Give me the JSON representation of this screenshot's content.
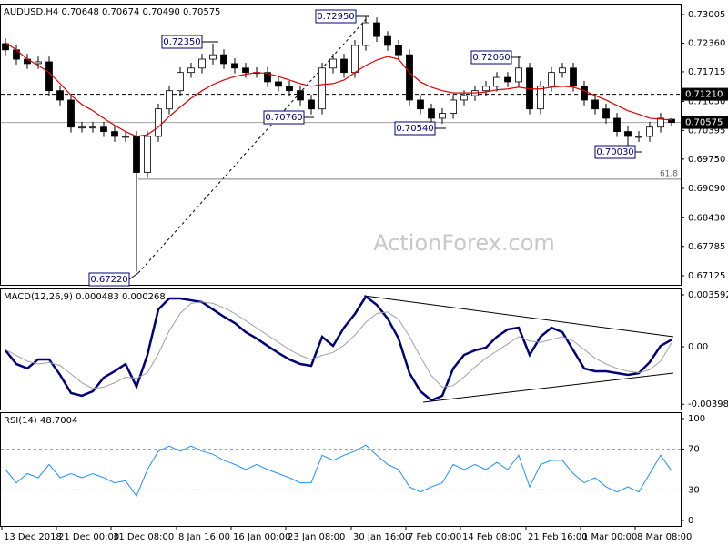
{
  "chart_data": [
    {
      "type": "candlestick",
      "title": "AUDUSD,H4  0.70648 0.70674 0.70490 0.70575",
      "open": [
        0.7235,
        0.7221,
        0.72,
        0.719,
        0.7194,
        0.7129,
        0.7108,
        0.7047,
        0.7047,
        0.7047,
        0.7037,
        0.7026,
        0.7026,
        0.6945,
        0.7026,
        0.7088,
        0.7129,
        0.717,
        0.718,
        0.72,
        0.721,
        0.719,
        0.718,
        0.717,
        0.717,
        0.7149,
        0.7139,
        0.7129,
        0.7108,
        0.7088,
        0.718,
        0.72,
        0.717,
        0.7231,
        0.7282,
        0.7251,
        0.7231,
        0.721,
        0.7108,
        0.7088,
        0.7067,
        0.7078,
        0.7108,
        0.7118,
        0.7129,
        0.7139,
        0.7159,
        0.7149,
        0.718,
        0.7088,
        0.7139,
        0.717,
        0.718,
        0.7139,
        0.7108,
        0.7088,
        0.7067,
        0.7037,
        0.7026,
        0.7026,
        0.7047,
        0.70648
      ],
      "high": [
        0.7247,
        0.7233,
        0.7212,
        0.7206,
        0.7206,
        0.7141,
        0.712,
        0.7059,
        0.7059,
        0.7059,
        0.7049,
        0.7038,
        0.7038,
        0.7038,
        0.71,
        0.7141,
        0.7182,
        0.7192,
        0.7212,
        0.7235,
        0.7222,
        0.7202,
        0.7192,
        0.7182,
        0.7182,
        0.7161,
        0.7151,
        0.7141,
        0.712,
        0.7192,
        0.7212,
        0.7212,
        0.7243,
        0.7295,
        0.7294,
        0.7263,
        0.7243,
        0.7222,
        0.712,
        0.71,
        0.709,
        0.712,
        0.713,
        0.7141,
        0.7151,
        0.7171,
        0.7171,
        0.7206,
        0.7192,
        0.7151,
        0.7182,
        0.7192,
        0.7192,
        0.7151,
        0.712,
        0.71,
        0.7079,
        0.7049,
        0.7038,
        0.7059,
        0.7079,
        0.70674
      ],
      "low": [
        0.7209,
        0.7188,
        0.7178,
        0.7178,
        0.7117,
        0.7096,
        0.7035,
        0.7035,
        0.7035,
        0.7025,
        0.7014,
        0.7014,
        0.6722,
        0.6933,
        0.7014,
        0.7076,
        0.7117,
        0.7158,
        0.7168,
        0.7188,
        0.7178,
        0.7168,
        0.7158,
        0.7158,
        0.7137,
        0.7127,
        0.7117,
        0.7096,
        0.7076,
        0.7076,
        0.7168,
        0.7158,
        0.7158,
        0.7219,
        0.7239,
        0.7219,
        0.7198,
        0.7096,
        0.7076,
        0.7054,
        0.7055,
        0.7066,
        0.7096,
        0.7106,
        0.7117,
        0.7127,
        0.7137,
        0.7137,
        0.7076,
        0.7076,
        0.7127,
        0.7158,
        0.7127,
        0.7096,
        0.7076,
        0.7055,
        0.7025,
        0.7003,
        0.7014,
        0.7014,
        0.7035,
        0.7049
      ],
      "close": [
        0.7221,
        0.72,
        0.719,
        0.7194,
        0.7129,
        0.7108,
        0.7047,
        0.7047,
        0.7047,
        0.7037,
        0.7026,
        0.7026,
        0.6945,
        0.7026,
        0.7088,
        0.7129,
        0.717,
        0.718,
        0.72,
        0.721,
        0.719,
        0.718,
        0.717,
        0.717,
        0.7149,
        0.7139,
        0.7129,
        0.7108,
        0.7088,
        0.718,
        0.72,
        0.717,
        0.7231,
        0.7282,
        0.7251,
        0.7231,
        0.721,
        0.7108,
        0.7088,
        0.7067,
        0.7078,
        0.7108,
        0.7118,
        0.7129,
        0.7139,
        0.7159,
        0.7149,
        0.718,
        0.7088,
        0.7139,
        0.717,
        0.718,
        0.7139,
        0.7108,
        0.7088,
        0.7067,
        0.7037,
        0.7026,
        0.7026,
        0.7047,
        0.7067,
        0.70575
      ],
      "up_color": "#ffffff",
      "down_color": "#000000",
      "ma": {
        "color": "#e00000",
        "values": [
          0.7237,
          0.7221,
          0.72,
          0.7186,
          0.717,
          0.7145,
          0.7119,
          0.7098,
          0.7084,
          0.7067,
          0.7051,
          0.7037,
          0.7026,
          0.703,
          0.7047,
          0.7071,
          0.7092,
          0.7112,
          0.7129,
          0.7143,
          0.7153,
          0.7161,
          0.7166,
          0.717,
          0.7168,
          0.7161,
          0.7153,
          0.7145,
          0.7139,
          0.7143,
          0.7145,
          0.7153,
          0.717,
          0.7186,
          0.7198,
          0.7206,
          0.72,
          0.717,
          0.7149,
          0.7137,
          0.7129,
          0.7124,
          0.7124,
          0.7124,
          0.7126,
          0.7131,
          0.7133,
          0.7137,
          0.7133,
          0.7133,
          0.7137,
          0.7139,
          0.7137,
          0.7129,
          0.7118,
          0.7108,
          0.7096,
          0.7084,
          0.7076,
          0.7067,
          0.7065,
          0.7063
        ]
      },
      "ylim": [
        0.6692,
        0.7323
      ],
      "yticks": [
        0.73005,
        {
          "value": 0.7236,
          "label": "0.72360"
        },
        0.71715,
        {
          "value": 0.7105,
          "label": "0.71050"
        },
        0.70395,
        {
          "value": 0.6975,
          "label": "0.69750"
        },
        {
          "value": 0.6909,
          "label": "0.69090"
        },
        {
          "value": 0.6843,
          "label": "0.68430"
        },
        0.67785,
        0.67125
      ],
      "hlines": [
        {
          "value": 0.7121,
          "label": "0.71210",
          "style": "dashed",
          "color": "#000000"
        },
        {
          "value": 0.70575,
          "label": "0.70575",
          "style": "solid",
          "color": "#a0a0a0"
        },
        {
          "value": 0.693,
          "name": "61.8",
          "style": "solid",
          "color": "#808080"
        }
      ],
      "annotations": [
        "0.72350",
        "0.72950",
        "0.70760",
        "0.70540",
        "0.72060",
        "0.70030",
        "0.67220"
      ],
      "watermark": "ActionForex.com"
    },
    {
      "type": "line",
      "title": "MACD(12,26,9) 0.000483 0.000268",
      "series": [
        {
          "color": "#00007a",
          "width": 2.5,
          "values": [
            -0.00025,
            -0.0012,
            -0.0015,
            -0.00088,
            -0.00088,
            -0.00195,
            -0.00321,
            -0.0034,
            -0.00309,
            -0.00214,
            -0.0017,
            -0.0012,
            -0.00277,
            -0.00057,
            0.00258,
            0.00334,
            0.00334,
            0.00321,
            0.00309,
            0.00258,
            0.00208,
            0.00164,
            0.00101,
            0.00057,
            6e-05,
            -0.00044,
            -0.00088,
            -0.0012,
            -0.00132,
            0.00069,
            6e-05,
            0.00132,
            0.00227,
            0.00347,
            0.0029,
            0.00195,
            0.00057,
            -0.00183,
            -0.00309,
            -0.00372,
            -0.0034,
            -0.00151,
            -0.00057,
            -0.00025,
            -6e-05,
            0.00069,
            0.0012,
            0.00132,
            -0.00057,
            0.00069,
            0.00132,
            0.00101,
            -0.00025,
            -0.00151,
            -0.0017,
            -0.0017,
            -0.00183,
            -0.00195,
            -0.00183,
            -0.00107,
            6e-05,
            0.000483
          ]
        },
        {
          "color": "#a0a0a0",
          "width": 1,
          "values": [
            -0.0002,
            -0.0006,
            -0.001,
            -0.0012,
            -0.0011,
            -0.0013,
            -0.0019,
            -0.0025,
            -0.0029,
            -0.0028,
            -0.0025,
            -0.0021,
            -0.0022,
            -0.0018,
            -0.0005,
            0.0011,
            0.0023,
            0.003,
            0.0031,
            0.003,
            0.0027,
            0.0023,
            0.0018,
            0.0013,
            0.0008,
            0.0003,
            -0.0002,
            -0.0006,
            -0.0009,
            -0.0006,
            -0.0004,
            0.0001,
            0.0008,
            0.0017,
            0.0023,
            0.0024,
            0.0019,
            0.0007,
            -0.0007,
            -0.002,
            -0.0028,
            -0.0027,
            -0.0021,
            -0.0014,
            -0.0008,
            -0.0003,
            0.0002,
            0.0007,
            0.0004,
            0.0003,
            0.0005,
            0.0007,
            0.0004,
            -0.0002,
            -0.0008,
            -0.0012,
            -0.0015,
            -0.0017,
            -0.0018,
            -0.0016,
            -0.001,
            0.000268
          ]
        }
      ],
      "ylim": [
        -0.00435,
        0.00397
      ],
      "yticks": [
        0.003592,
        {
          "value": 0,
          "label": "0.00"
        },
        -0.003986
      ]
    },
    {
      "type": "line",
      "title": "RSI(14) 48.7004",
      "series": [
        {
          "color": "#1e90ff",
          "width": 1,
          "values": [
            50,
            37,
            46,
            42,
            55,
            42,
            46,
            42,
            46,
            42,
            37,
            39,
            24,
            50,
            68,
            73,
            68,
            73,
            68,
            65,
            59,
            55,
            50,
            55,
            50,
            46,
            42,
            37,
            37,
            64,
            59,
            64,
            68,
            74,
            64,
            55,
            50,
            33,
            28,
            33,
            37,
            55,
            50,
            55,
            50,
            57,
            50,
            64,
            33,
            55,
            59,
            59,
            46,
            37,
            42,
            33,
            28,
            33,
            28,
            46,
            64,
            48.7004
          ]
        }
      ],
      "ylim": [
        -5.3,
        105.3
      ],
      "yticks": [
        100,
        70,
        30,
        0
      ],
      "levels": [
        70,
        30
      ],
      "categories": [
        "13 Dec 2018",
        null,
        null,
        null,
        null,
        "21 Dec 00:00",
        null,
        null,
        null,
        null,
        "31 Dec 08:00",
        null,
        null,
        null,
        null,
        null,
        "8 Jan 16:00",
        null,
        null,
        null,
        null,
        "16 Jan 00:00",
        null,
        null,
        null,
        null,
        "23 Jan 08:00",
        null,
        null,
        null,
        null,
        null,
        "30 Jan 16:00",
        null,
        null,
        null,
        null,
        "7 Feb 00:00",
        null,
        null,
        null,
        null,
        "14 Feb 08:00",
        null,
        null,
        null,
        null,
        null,
        "21 Feb 16:00",
        null,
        null,
        null,
        null,
        "1 Mar 00:00",
        null,
        null,
        null,
        null,
        "8 Mar 08:00",
        null,
        null,
        null
      ]
    }
  ]
}
